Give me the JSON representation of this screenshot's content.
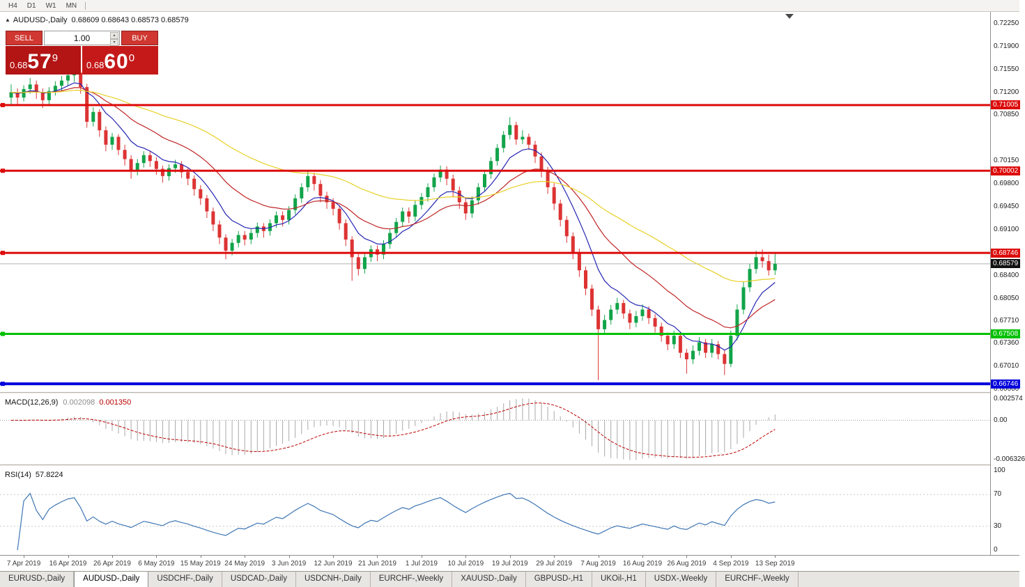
{
  "timeframe_toolbar": {
    "items": [
      "H4",
      "D1",
      "W1",
      "MN"
    ]
  },
  "chart": {
    "title": "AUDUSD-,Daily",
    "ohlc_text": "0.68609 0.68643 0.68573 0.68579",
    "current_price": "0.68579"
  },
  "icons": {
    "panel_toggle": "▲",
    "spinner_up": "▴",
    "spinner_down": "▾",
    "shift_marker": "▼"
  },
  "trade_panel": {
    "sell_label": "SELL",
    "buy_label": "BUY",
    "volume": "1.00",
    "sell_price": {
      "prefix": "0.68",
      "big": "57",
      "sup": "9"
    },
    "buy_price": {
      "prefix": "0.68",
      "big": "60",
      "sup": "0"
    }
  },
  "price_axis_labels": [
    "0.72250",
    "0.71900",
    "0.71550",
    "0.71200",
    "0.70850",
    "0.70150",
    "0.69800",
    "0.69450",
    "0.69100",
    "0.68400",
    "0.68050",
    "0.67710",
    "0.67360",
    "0.67010",
    "0.66660"
  ],
  "hlines": [
    {
      "price": 0.71005,
      "label": "0.71005",
      "color": "#dd0b0b",
      "width": 3
    },
    {
      "price": 0.70002,
      "label": "0.70002",
      "color": "#dd0b0b",
      "width": 3
    },
    {
      "price": 0.68746,
      "label": "0.68746",
      "color": "#dd0b0b",
      "width": 3
    },
    {
      "price": 0.67508,
      "label": "0.67508",
      "color": "#00c000",
      "width": 3
    },
    {
      "price": 0.66746,
      "label": "0.66746",
      "color": "#0000dd",
      "width": 4
    }
  ],
  "chart_data": {
    "type": "candlestick",
    "title": "AUDUSD-,Daily",
    "ylim": [
      0.6662,
      0.7243
    ],
    "up_color": "#12a44a",
    "down_color": "#dd3333",
    "current_price_line_color": "#b0b0b0",
    "ma": [
      {
        "period": 8,
        "color": "#2525b4"
      },
      {
        "period": 20,
        "color": "#c02424"
      },
      {
        "period": 50,
        "color": "#e8d024"
      }
    ],
    "date_labels": [
      "7 Apr 2019",
      "16 Apr 2019",
      "26 Apr 2019",
      "6 May 2019",
      "15 May 2019",
      "24 May 2019",
      "3 Jun 2019",
      "12 Jun 2019",
      "21 Jun 2019",
      "1 Jul 2019",
      "10 Jul 2019",
      "19 Jul 2019",
      "29 Jul 2019",
      "7 Aug 2019",
      "16 Aug 2019",
      "26 Aug 2019",
      "4 Sep 2019",
      "13 Sep 2019"
    ],
    "label_indices": [
      2,
      9,
      16,
      23,
      30,
      37,
      44,
      51,
      58,
      65,
      72,
      79,
      86,
      93,
      100,
      107,
      114,
      121
    ],
    "candles_ohlc": [
      [
        0.7112,
        0.7132,
        0.7102,
        0.712
      ],
      [
        0.712,
        0.7126,
        0.71,
        0.7112
      ],
      [
        0.7112,
        0.7131,
        0.7106,
        0.7125
      ],
      [
        0.7125,
        0.7142,
        0.7118,
        0.7132
      ],
      [
        0.7132,
        0.7138,
        0.711,
        0.712
      ],
      [
        0.712,
        0.7126,
        0.7096,
        0.7108
      ],
      [
        0.7108,
        0.7128,
        0.71,
        0.7122
      ],
      [
        0.7122,
        0.7137,
        0.7115,
        0.713
      ],
      [
        0.713,
        0.7145,
        0.7122,
        0.7138
      ],
      [
        0.7138,
        0.7152,
        0.713,
        0.7146
      ],
      [
        0.7146,
        0.7157,
        0.7136,
        0.715
      ],
      [
        0.715,
        0.7154,
        0.7118,
        0.7128
      ],
      [
        0.7128,
        0.7133,
        0.7066,
        0.7075
      ],
      [
        0.7075,
        0.7097,
        0.7068,
        0.709
      ],
      [
        0.709,
        0.7094,
        0.7052,
        0.7062
      ],
      [
        0.7062,
        0.7068,
        0.703,
        0.704
      ],
      [
        0.704,
        0.7058,
        0.7032,
        0.7052
      ],
      [
        0.7052,
        0.7056,
        0.7024,
        0.7032
      ],
      [
        0.7032,
        0.704,
        0.7008,
        0.7018
      ],
      [
        0.7018,
        0.7024,
        0.6988,
        0.7
      ],
      [
        0.7,
        0.7018,
        0.6993,
        0.7012
      ],
      [
        0.7012,
        0.703,
        0.7005,
        0.7024
      ],
      [
        0.7024,
        0.703,
        0.7006,
        0.7015
      ],
      [
        0.7015,
        0.7021,
        0.6994,
        0.7003
      ],
      [
        0.7003,
        0.7008,
        0.6982,
        0.6992
      ],
      [
        0.6992,
        0.701,
        0.6985,
        0.7004
      ],
      [
        0.7004,
        0.7017,
        0.6997,
        0.701
      ],
      [
        0.701,
        0.7015,
        0.6989,
        0.6998
      ],
      [
        0.6998,
        0.7004,
        0.6978,
        0.6988
      ],
      [
        0.6988,
        0.6993,
        0.6962,
        0.6972
      ],
      [
        0.6972,
        0.6978,
        0.6948,
        0.6958
      ],
      [
        0.6958,
        0.6963,
        0.6928,
        0.6938
      ],
      [
        0.6938,
        0.6944,
        0.6908,
        0.6918
      ],
      [
        0.6918,
        0.6924,
        0.6888,
        0.6898
      ],
      [
        0.6898,
        0.6903,
        0.6865,
        0.6878
      ],
      [
        0.6878,
        0.6896,
        0.6871,
        0.689
      ],
      [
        0.689,
        0.6908,
        0.6883,
        0.6902
      ],
      [
        0.6902,
        0.6908,
        0.6886,
        0.6895
      ],
      [
        0.6895,
        0.6911,
        0.6888,
        0.6905
      ],
      [
        0.6905,
        0.6921,
        0.6898,
        0.6915
      ],
      [
        0.6915,
        0.692,
        0.6898,
        0.6908
      ],
      [
        0.6908,
        0.6926,
        0.6901,
        0.692
      ],
      [
        0.692,
        0.6938,
        0.6913,
        0.6932
      ],
      [
        0.6932,
        0.6938,
        0.6915,
        0.6925
      ],
      [
        0.6925,
        0.6946,
        0.6918,
        0.694
      ],
      [
        0.694,
        0.6964,
        0.6933,
        0.6958
      ],
      [
        0.6958,
        0.6981,
        0.6951,
        0.6975
      ],
      [
        0.6975,
        0.6999,
        0.6968,
        0.6992
      ],
      [
        0.6992,
        0.6997,
        0.697,
        0.698
      ],
      [
        0.698,
        0.6986,
        0.6952,
        0.6962
      ],
      [
        0.6962,
        0.6968,
        0.6942,
        0.6952
      ],
      [
        0.6952,
        0.6958,
        0.6932,
        0.6942
      ],
      [
        0.6942,
        0.6947,
        0.691,
        0.692
      ],
      [
        0.692,
        0.6926,
        0.6885,
        0.6895
      ],
      [
        0.6895,
        0.69,
        0.6832,
        0.6868
      ],
      [
        0.6868,
        0.6874,
        0.684,
        0.685
      ],
      [
        0.685,
        0.6874,
        0.6843,
        0.6868
      ],
      [
        0.6868,
        0.6886,
        0.6861,
        0.688
      ],
      [
        0.688,
        0.6886,
        0.6862,
        0.6872
      ],
      [
        0.6872,
        0.6894,
        0.6865,
        0.6888
      ],
      [
        0.6888,
        0.6911,
        0.6881,
        0.6905
      ],
      [
        0.6905,
        0.6928,
        0.6898,
        0.6922
      ],
      [
        0.6922,
        0.6944,
        0.6915,
        0.6938
      ],
      [
        0.6938,
        0.6944,
        0.692,
        0.693
      ],
      [
        0.693,
        0.6954,
        0.6923,
        0.6948
      ],
      [
        0.6948,
        0.6966,
        0.6941,
        0.696
      ],
      [
        0.696,
        0.6981,
        0.6953,
        0.6975
      ],
      [
        0.6975,
        0.6996,
        0.6968,
        0.699
      ],
      [
        0.699,
        0.7008,
        0.6983,
        0.7002
      ],
      [
        0.7002,
        0.7007,
        0.6978,
        0.6988
      ],
      [
        0.6988,
        0.6994,
        0.696,
        0.697
      ],
      [
        0.697,
        0.6976,
        0.6942,
        0.6952
      ],
      [
        0.6952,
        0.6958,
        0.6925,
        0.6935
      ],
      [
        0.6935,
        0.6961,
        0.6928,
        0.6955
      ],
      [
        0.6955,
        0.6981,
        0.6948,
        0.6975
      ],
      [
        0.6975,
        0.7001,
        0.6968,
        0.6995
      ],
      [
        0.6995,
        0.7021,
        0.6988,
        0.7015
      ],
      [
        0.7015,
        0.7041,
        0.7008,
        0.7035
      ],
      [
        0.7035,
        0.7061,
        0.7028,
        0.7055
      ],
      [
        0.7055,
        0.7082,
        0.7048,
        0.707
      ],
      [
        0.707,
        0.7075,
        0.704,
        0.7048
      ],
      [
        0.7048,
        0.7062,
        0.7041,
        0.7052
      ],
      [
        0.7052,
        0.7057,
        0.7032,
        0.704
      ],
      [
        0.704,
        0.7046,
        0.7012,
        0.7022
      ],
      [
        0.7022,
        0.7028,
        0.699,
        0.7
      ],
      [
        0.7,
        0.7006,
        0.6965,
        0.6975
      ],
      [
        0.6975,
        0.6981,
        0.694,
        0.695
      ],
      [
        0.695,
        0.6956,
        0.6915,
        0.6925
      ],
      [
        0.6925,
        0.6931,
        0.689,
        0.69
      ],
      [
        0.69,
        0.6906,
        0.6865,
        0.6875
      ],
      [
        0.6875,
        0.6881,
        0.6838,
        0.6848
      ],
      [
        0.6848,
        0.6854,
        0.681,
        0.682
      ],
      [
        0.682,
        0.6826,
        0.6778,
        0.6788
      ],
      [
        0.6788,
        0.6794,
        0.668,
        0.6758
      ],
      [
        0.6758,
        0.678,
        0.675,
        0.6772
      ],
      [
        0.6772,
        0.6795,
        0.6765,
        0.6788
      ],
      [
        0.6788,
        0.6806,
        0.6781,
        0.6798
      ],
      [
        0.6798,
        0.6803,
        0.6774,
        0.6782
      ],
      [
        0.6782,
        0.6788,
        0.6758,
        0.6768
      ],
      [
        0.6768,
        0.6786,
        0.6761,
        0.6778
      ],
      [
        0.6778,
        0.6796,
        0.6771,
        0.6788
      ],
      [
        0.6788,
        0.6793,
        0.6766,
        0.6775
      ],
      [
        0.6775,
        0.6781,
        0.6753,
        0.6762
      ],
      [
        0.6762,
        0.6768,
        0.6739,
        0.6748
      ],
      [
        0.6748,
        0.6753,
        0.6726,
        0.6735
      ],
      [
        0.6735,
        0.6756,
        0.6728,
        0.6748
      ],
      [
        0.6748,
        0.6753,
        0.6714,
        0.6722
      ],
      [
        0.6722,
        0.6728,
        0.669,
        0.6712
      ],
      [
        0.6712,
        0.6733,
        0.6705,
        0.6725
      ],
      [
        0.6725,
        0.6746,
        0.6718,
        0.6738
      ],
      [
        0.6738,
        0.6743,
        0.6714,
        0.6722
      ],
      [
        0.6722,
        0.6743,
        0.6715,
        0.6735
      ],
      [
        0.6735,
        0.674,
        0.6712,
        0.672
      ],
      [
        0.672,
        0.6726,
        0.6688,
        0.6705
      ],
      [
        0.6705,
        0.6756,
        0.67,
        0.6748
      ],
      [
        0.6748,
        0.6796,
        0.6741,
        0.6788
      ],
      [
        0.6788,
        0.683,
        0.6781,
        0.6822
      ],
      [
        0.6822,
        0.6858,
        0.6815,
        0.685
      ],
      [
        0.685,
        0.6878,
        0.6843,
        0.6868
      ],
      [
        0.6868,
        0.688,
        0.6852,
        0.6862
      ],
      [
        0.6862,
        0.6872,
        0.684,
        0.6848
      ],
      [
        0.6848,
        0.6876,
        0.6841,
        0.6858
      ]
    ]
  },
  "macd_panel": {
    "title": "MACD(12,26,9)",
    "value_main": "0.002098",
    "value_signal": "0.001350",
    "axis_top": "0.002574",
    "axis_zero": "0.00",
    "axis_bottom": "-0.006326",
    "histogram_color": "#a9a9a9",
    "signal_color": "#bb0000"
  },
  "rsi_panel": {
    "title": "RSI(14)",
    "value": "57.8224",
    "axis_labels": [
      "100",
      "70",
      "30",
      "0"
    ],
    "levels": [
      70,
      30
    ],
    "line_color": "#3e76b5",
    "level_color": "#c8c8c8"
  },
  "tabs": {
    "items": [
      {
        "label": "EURUSD-,Daily",
        "active": false
      },
      {
        "label": "AUDUSD-,Daily",
        "active": true
      },
      {
        "label": "USDCHF-,Daily",
        "active": false
      },
      {
        "label": "USDCAD-,Daily",
        "active": false
      },
      {
        "label": "USDCNH-,Daily",
        "active": false
      },
      {
        "label": "EURCHF-,Weekly",
        "active": false
      },
      {
        "label": "XAUUSD-,Daily",
        "active": false
      },
      {
        "label": "GBPUSD-,H1",
        "active": false
      },
      {
        "label": "UKOil-,H1",
        "active": false
      },
      {
        "label": "USDX-,Weekly",
        "active": false
      },
      {
        "label": "EURCHF-,Weekly",
        "active": false
      }
    ]
  }
}
